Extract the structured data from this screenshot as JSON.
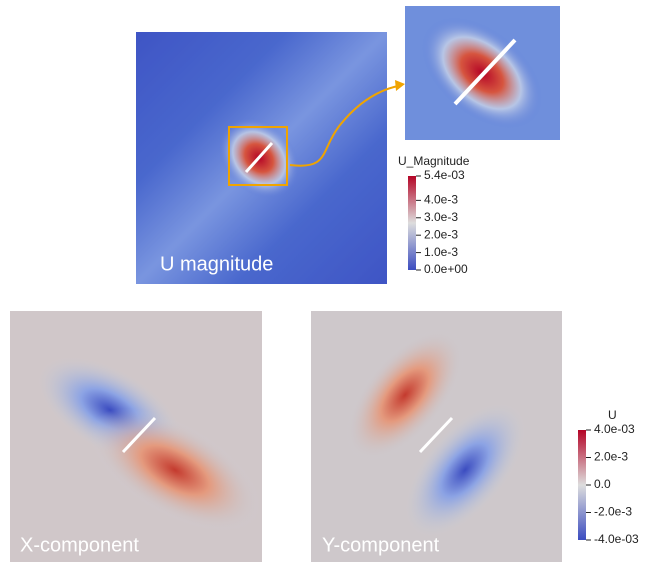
{
  "panels": [
    {
      "label": "U magnitude"
    },
    {
      "label": "X-component"
    },
    {
      "label": "Y-component"
    }
  ],
  "colorbars": [
    {
      "title": "U_Magnitude",
      "ticks": [
        {
          "value": 0.0054,
          "label": "5.4e-03"
        },
        {
          "value": 0.004,
          "label": "4.0e-3"
        },
        {
          "value": 0.003,
          "label": "3.0e-3"
        },
        {
          "value": 0.002,
          "label": "2.0e-3"
        },
        {
          "value": 0.001,
          "label": "1.0e-3"
        },
        {
          "value": 0,
          "label": "0.0e+00"
        }
      ]
    },
    {
      "title": "U",
      "ticks": [
        {
          "value": 0.004,
          "label": "4.0e-03"
        },
        {
          "value": 0.002,
          "label": "2.0e-3"
        },
        {
          "value": 0,
          "label": "0.0"
        },
        {
          "value": -0.002,
          "label": "-2.0e-3"
        },
        {
          "value": -0.004,
          "label": "-4.0e-03"
        }
      ]
    }
  ]
}
